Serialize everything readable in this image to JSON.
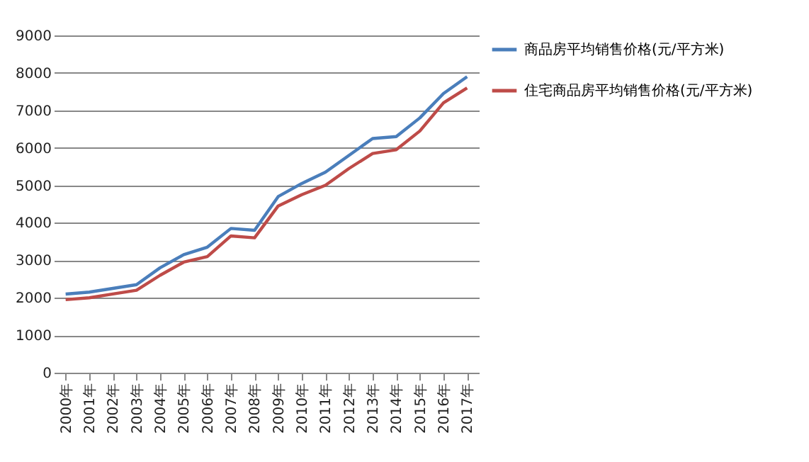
{
  "chart_data": {
    "type": "line",
    "categories": [
      "2000年",
      "2001年",
      "2002年",
      "2003年",
      "2004年",
      "2005年",
      "2006年",
      "2007年",
      "2008年",
      "2009年",
      "2010年",
      "2011年",
      "2012年",
      "2013年",
      "2014年",
      "2015年",
      "2016年",
      "2017年"
    ],
    "series": [
      {
        "name": "商品房平均销售价格(元/平方米)",
        "color": "#4a7ebb",
        "values": [
          2100,
          2150,
          2250,
          2350,
          2800,
          3150,
          3350,
          3850,
          3800,
          4700,
          5050,
          5350,
          5800,
          6250,
          6300,
          6800,
          7450,
          7900
        ]
      },
      {
        "name": "住宅商品房平均销售价格(元/平方米)",
        "color": "#be4b48",
        "values": [
          1950,
          2000,
          2100,
          2200,
          2600,
          2950,
          3100,
          3650,
          3600,
          4450,
          4750,
          5000,
          5450,
          5850,
          5950,
          6450,
          7200,
          7600
        ]
      }
    ],
    "ylim": [
      0,
      9000
    ],
    "yticks": [
      0,
      1000,
      2000,
      3000,
      4000,
      5000,
      6000,
      7000,
      8000,
      9000
    ],
    "grid": "y",
    "legend": "right",
    "marker": "none",
    "line_style": "solid"
  }
}
